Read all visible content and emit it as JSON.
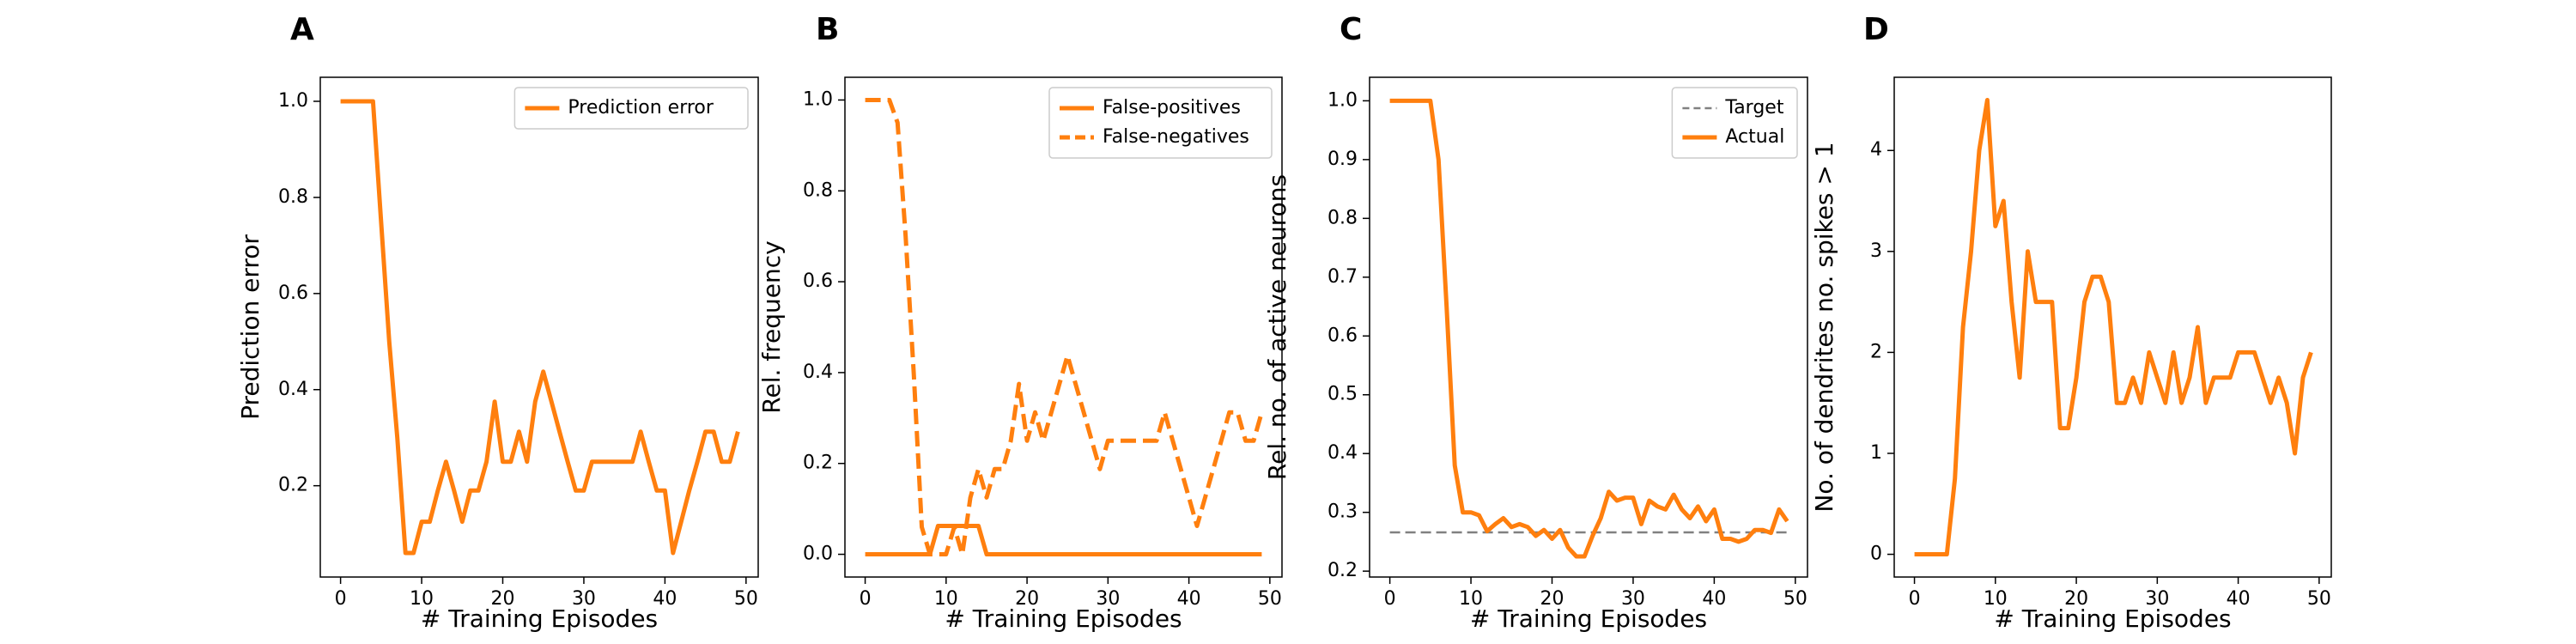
{
  "chart_data": [
    {
      "panel": "A",
      "type": "line",
      "xlabel": "# Training Episodes",
      "ylabel": "Prediction error",
      "xlim": [
        -2.5,
        51.5
      ],
      "ylim": [
        0.01,
        1.05
      ],
      "xticks": [
        0,
        10,
        20,
        30,
        40,
        50
      ],
      "xtick_labels": [
        "0",
        "10",
        "20",
        "30",
        "40",
        "50"
      ],
      "yticks": [
        0.2,
        0.4,
        0.6,
        0.8,
        1.0
      ],
      "ytick_labels": [
        "0.2",
        "0.4",
        "0.6",
        "0.8",
        "1.0"
      ],
      "legend_position": "top-right",
      "x": [
        0,
        1,
        2,
        3,
        4,
        5,
        6,
        7,
        8,
        9,
        10,
        11,
        12,
        13,
        14,
        15,
        16,
        17,
        18,
        19,
        20,
        21,
        22,
        23,
        24,
        25,
        26,
        27,
        28,
        29,
        30,
        31,
        32,
        33,
        34,
        35,
        36,
        37,
        38,
        39,
        40,
        41,
        42,
        43,
        44,
        45,
        46,
        47,
        48,
        49
      ],
      "series": [
        {
          "name": "Prediction error",
          "style": "solid",
          "color": "#ff7f0e",
          "values": [
            1.0,
            1.0,
            1.0,
            1.0,
            1.0,
            0.75,
            0.5,
            0.3,
            0.06,
            0.06,
            0.125,
            0.125,
            0.19,
            0.25,
            0.19,
            0.125,
            0.19,
            0.19,
            0.25,
            0.375,
            0.25,
            0.25,
            0.3125,
            0.25,
            0.375,
            0.4375,
            0.375,
            0.3125,
            0.25,
            0.19,
            0.19,
            0.25,
            0.25,
            0.25,
            0.25,
            0.25,
            0.25,
            0.3125,
            0.25,
            0.19,
            0.19,
            0.06,
            0.125,
            0.19,
            0.25,
            0.3125,
            0.3125,
            0.25,
            0.25,
            0.3125
          ]
        }
      ]
    },
    {
      "panel": "B",
      "type": "line",
      "xlabel": "# Training Episodes",
      "ylabel": "Rel. frequency",
      "xlim": [
        -2.5,
        51.5
      ],
      "ylim": [
        -0.05,
        1.05
      ],
      "xticks": [
        0,
        10,
        20,
        30,
        40,
        50
      ],
      "xtick_labels": [
        "0",
        "10",
        "20",
        "30",
        "40",
        "50"
      ],
      "yticks": [
        0.0,
        0.2,
        0.4,
        0.6,
        0.8,
        1.0
      ],
      "ytick_labels": [
        "0.0",
        "0.2",
        "0.4",
        "0.6",
        "0.8",
        "1.0"
      ],
      "legend_position": "top-right",
      "x": [
        0,
        1,
        2,
        3,
        4,
        5,
        6,
        7,
        8,
        9,
        10,
        11,
        12,
        13,
        14,
        15,
        16,
        17,
        18,
        19,
        20,
        21,
        22,
        23,
        24,
        25,
        26,
        27,
        28,
        29,
        30,
        31,
        32,
        33,
        34,
        35,
        36,
        37,
        38,
        39,
        40,
        41,
        42,
        43,
        44,
        45,
        46,
        47,
        48,
        49
      ],
      "series": [
        {
          "name": "False-positives",
          "style": "solid",
          "color": "#ff7f0e",
          "values": [
            0,
            0,
            0,
            0,
            0,
            0,
            0,
            0,
            0,
            0.0625,
            0.0625,
            0.0625,
            0.0625,
            0.0625,
            0.0625,
            0,
            0,
            0,
            0,
            0,
            0,
            0,
            0,
            0,
            0,
            0,
            0,
            0,
            0,
            0,
            0,
            0,
            0,
            0,
            0,
            0,
            0,
            0,
            0,
            0,
            0,
            0,
            0,
            0,
            0,
            0,
            0,
            0,
            0,
            0
          ]
        },
        {
          "name": "False-negatives",
          "style": "dashed",
          "color": "#ff7f0e",
          "values": [
            1.0,
            1.0,
            1.0,
            1.0,
            0.95,
            0.7,
            0.4,
            0.06,
            0.0,
            0.0,
            0.0,
            0.06,
            0.0,
            0.125,
            0.1875,
            0.125,
            0.1875,
            0.1875,
            0.25,
            0.375,
            0.25,
            0.3125,
            0.25,
            0.3125,
            0.375,
            0.4375,
            0.375,
            0.3125,
            0.25,
            0.1875,
            0.25,
            0.25,
            0.25,
            0.25,
            0.25,
            0.25,
            0.25,
            0.3125,
            0.25,
            0.1875,
            0.125,
            0.0625,
            0.125,
            0.1875,
            0.25,
            0.3125,
            0.3125,
            0.25,
            0.25,
            0.3125
          ]
        }
      ]
    },
    {
      "panel": "C",
      "type": "line",
      "xlabel": "# Training Episodes",
      "ylabel": "Rel. no. of active neurons",
      "xlim": [
        -2.5,
        51.5
      ],
      "ylim": [
        0.19,
        1.04
      ],
      "xticks": [
        0,
        10,
        20,
        30,
        40,
        50
      ],
      "xtick_labels": [
        "0",
        "10",
        "20",
        "30",
        "40",
        "50"
      ],
      "yticks": [
        0.2,
        0.3,
        0.4,
        0.5,
        0.6,
        0.7,
        0.8,
        0.9,
        1.0
      ],
      "ytick_labels": [
        "0.2",
        "0.3",
        "0.4",
        "0.5",
        "0.6",
        "0.7",
        "0.8",
        "0.9",
        "1.0"
      ],
      "legend_position": "top-right",
      "x": [
        0,
        1,
        2,
        3,
        4,
        5,
        6,
        7,
        8,
        9,
        10,
        11,
        12,
        13,
        14,
        15,
        16,
        17,
        18,
        19,
        20,
        21,
        22,
        23,
        24,
        25,
        26,
        27,
        28,
        29,
        30,
        31,
        32,
        33,
        34,
        35,
        36,
        37,
        38,
        39,
        40,
        41,
        42,
        43,
        44,
        45,
        46,
        47,
        48,
        49
      ],
      "series": [
        {
          "name": "Target",
          "style": "dashed-gray",
          "color": "#808080",
          "values": [
            0.266,
            0.266,
            0.266,
            0.266,
            0.266,
            0.266,
            0.266,
            0.266,
            0.266,
            0.266,
            0.266,
            0.266,
            0.266,
            0.266,
            0.266,
            0.266,
            0.266,
            0.266,
            0.266,
            0.266,
            0.266,
            0.266,
            0.266,
            0.266,
            0.266,
            0.266,
            0.266,
            0.266,
            0.266,
            0.266,
            0.266,
            0.266,
            0.266,
            0.266,
            0.266,
            0.266,
            0.266,
            0.266,
            0.266,
            0.266,
            0.266,
            0.266,
            0.266,
            0.266,
            0.266,
            0.266,
            0.266,
            0.266,
            0.266,
            0.266
          ]
        },
        {
          "name": "Actual",
          "style": "solid",
          "color": "#ff7f0e",
          "values": [
            1.0,
            1.0,
            1.0,
            1.0,
            1.0,
            1.0,
            0.9,
            0.65,
            0.38,
            0.3,
            0.3,
            0.295,
            0.268,
            0.28,
            0.29,
            0.275,
            0.28,
            0.275,
            0.26,
            0.27,
            0.255,
            0.27,
            0.24,
            0.225,
            0.225,
            0.26,
            0.29,
            0.335,
            0.32,
            0.325,
            0.325,
            0.28,
            0.32,
            0.31,
            0.305,
            0.33,
            0.305,
            0.29,
            0.31,
            0.285,
            0.305,
            0.255,
            0.255,
            0.25,
            0.255,
            0.27,
            0.27,
            0.265,
            0.305,
            0.285
          ]
        }
      ]
    },
    {
      "panel": "D",
      "type": "line",
      "xlabel": "# Training Episodes",
      "ylabel": "No. of dendrites no. spikes > 1",
      "xlim": [
        -2.5,
        51.5
      ],
      "ylim": [
        -0.225,
        4.725
      ],
      "xticks": [
        0,
        10,
        20,
        30,
        40,
        50
      ],
      "xtick_labels": [
        "0",
        "10",
        "20",
        "30",
        "40",
        "50"
      ],
      "yticks": [
        0,
        1,
        2,
        3,
        4
      ],
      "ytick_labels": [
        "0",
        "1",
        "2",
        "3",
        "4"
      ],
      "legend_position": "none",
      "x": [
        0,
        1,
        2,
        3,
        4,
        5,
        6,
        7,
        8,
        9,
        10,
        11,
        12,
        13,
        14,
        15,
        16,
        17,
        18,
        19,
        20,
        21,
        22,
        23,
        24,
        25,
        26,
        27,
        28,
        29,
        30,
        31,
        32,
        33,
        34,
        35,
        36,
        37,
        38,
        39,
        40,
        41,
        42,
        43,
        44,
        45,
        46,
        47,
        48,
        49
      ],
      "series": [
        {
          "name": "",
          "style": "solid",
          "color": "#ff7f0e",
          "values": [
            0,
            0,
            0,
            0,
            0,
            0.75,
            2.25,
            3.0,
            4.0,
            4.5,
            3.25,
            3.5,
            2.5,
            1.75,
            3.0,
            2.5,
            2.5,
            2.5,
            1.25,
            1.25,
            1.75,
            2.5,
            2.75,
            2.75,
            2.5,
            1.5,
            1.5,
            1.75,
            1.5,
            2.0,
            1.75,
            1.5,
            2.0,
            1.5,
            1.75,
            2.25,
            1.5,
            1.75,
            1.75,
            1.75,
            2.0,
            2.0,
            2.0,
            1.75,
            1.5,
            1.75,
            1.5,
            1.0,
            1.75,
            2.0
          ]
        }
      ]
    }
  ]
}
